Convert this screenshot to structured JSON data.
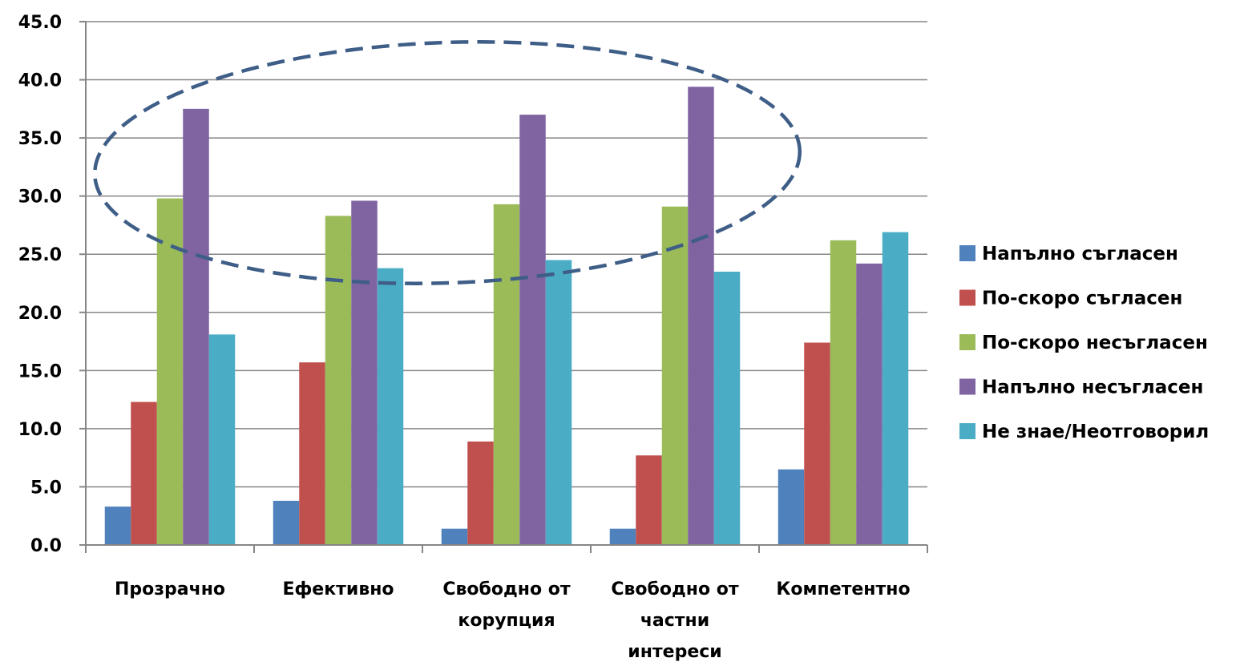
{
  "chart_data": {
    "type": "bar",
    "categories": [
      [
        "Прозрачно"
      ],
      [
        "Ефективно"
      ],
      [
        "Свободно от",
        "корупция"
      ],
      [
        "Свободно от",
        "частни",
        "интереси"
      ],
      [
        "Компетентно"
      ]
    ],
    "series": [
      {
        "name": "Напълно съгласен",
        "color": "#4F81BD",
        "values": [
          3.3,
          3.8,
          1.4,
          1.4,
          6.5
        ]
      },
      {
        "name": "По-скоро съгласен",
        "color": "#C0504D",
        "values": [
          12.3,
          15.7,
          8.9,
          7.7,
          17.4
        ]
      },
      {
        "name": "По-скоро несъгласен",
        "color": "#9BBB59",
        "values": [
          29.8,
          28.3,
          29.3,
          29.1,
          26.2
        ]
      },
      {
        "name": "Напълно несъгласен",
        "color": "#8064A2",
        "values": [
          37.5,
          29.6,
          37.0,
          39.4,
          24.2
        ]
      },
      {
        "name": "Не знае/Неотговорил",
        "color": "#4BACC6",
        "values": [
          18.1,
          23.8,
          24.5,
          23.5,
          26.9
        ]
      }
    ],
    "ylim": [
      0,
      45
    ],
    "yticks": [
      "0.0",
      "5.0",
      "10.0",
      "15.0",
      "20.0",
      "25.0",
      "30.0",
      "35.0",
      "40.0",
      "45.0"
    ],
    "grid": true,
    "legend_position": "right",
    "annotation": "dashed ellipse highlighting the tallest bars",
    "annotation_color": "#3F5E87"
  }
}
